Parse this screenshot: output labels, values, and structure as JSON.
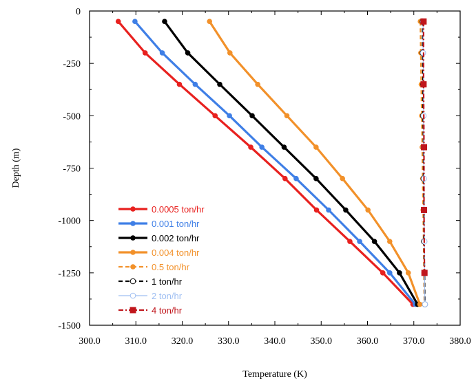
{
  "chart_data": {
    "type": "line",
    "xlabel": "Temperature (K)",
    "ylabel": "Depth (m)",
    "xlim": [
      300.0,
      380.0
    ],
    "ylim": [
      -1500,
      0
    ],
    "x_ticks": [
      "300.0",
      "310.0",
      "320.0",
      "330.0",
      "340.0",
      "350.0",
      "360.0",
      "370.0",
      "380.0"
    ],
    "y_ticks": [
      "0",
      "-250",
      "-500",
      "-750",
      "-1000",
      "-1250",
      "-1500"
    ],
    "x_tick_values": [
      300,
      310,
      320,
      330,
      340,
      350,
      360,
      370,
      380
    ],
    "y_tick_values": [
      0,
      -250,
      -500,
      -750,
      -1000,
      -1250,
      -1500
    ],
    "grid": false,
    "legend_position": "bottom-left",
    "series": [
      {
        "name": "0.0005 ton/hr",
        "color": "#e8211f",
        "dash": "solid",
        "marker": "filled-circle",
        "points": [
          [
            306.2,
            -50
          ],
          [
            312.0,
            -200
          ],
          [
            319.4,
            -350
          ],
          [
            327.1,
            -500
          ],
          [
            334.8,
            -650
          ],
          [
            342.2,
            -800
          ],
          [
            349.0,
            -950
          ],
          [
            356.2,
            -1100
          ],
          [
            363.3,
            -1250
          ],
          [
            369.8,
            -1400
          ]
        ]
      },
      {
        "name": "0.001 ton/hr",
        "color": "#3f7fe6",
        "dash": "solid",
        "marker": "filled-circle",
        "points": [
          [
            309.8,
            -50
          ],
          [
            315.7,
            -200
          ],
          [
            322.8,
            -350
          ],
          [
            330.2,
            -500
          ],
          [
            337.2,
            -650
          ],
          [
            344.6,
            -800
          ],
          [
            351.6,
            -950
          ],
          [
            358.3,
            -1100
          ],
          [
            364.8,
            -1250
          ],
          [
            370.3,
            -1400
          ]
        ]
      },
      {
        "name": "0.002 ton/hr",
        "color": "#000000",
        "dash": "solid",
        "marker": "filled-circle",
        "points": [
          [
            316.2,
            -50
          ],
          [
            321.2,
            -200
          ],
          [
            328.1,
            -350
          ],
          [
            335.1,
            -500
          ],
          [
            342.0,
            -650
          ],
          [
            348.9,
            -800
          ],
          [
            355.3,
            -950
          ],
          [
            361.5,
            -1100
          ],
          [
            366.9,
            -1250
          ],
          [
            370.8,
            -1400
          ]
        ]
      },
      {
        "name": "0.004 ton/hr",
        "color": "#f2912a",
        "dash": "solid",
        "marker": "filled-circle",
        "points": [
          [
            325.9,
            -50
          ],
          [
            330.3,
            -200
          ],
          [
            336.3,
            -350
          ],
          [
            342.6,
            -500
          ],
          [
            348.9,
            -650
          ],
          [
            354.6,
            -800
          ],
          [
            360.1,
            -950
          ],
          [
            364.8,
            -1100
          ],
          [
            368.8,
            -1250
          ],
          [
            371.3,
            -1400
          ]
        ]
      },
      {
        "name": "0.5 ton/hr",
        "color": "#f2912a",
        "dash": "dashed",
        "marker": "filled-circle",
        "points": [
          [
            371.4,
            -50
          ],
          [
            371.5,
            -200
          ],
          [
            371.6,
            -350
          ],
          [
            371.7,
            -500
          ],
          [
            371.8,
            -650
          ],
          [
            371.9,
            -800
          ],
          [
            372.0,
            -950
          ],
          [
            372.1,
            -1100
          ],
          [
            372.2,
            -1250
          ],
          [
            372.3,
            -1400
          ]
        ]
      },
      {
        "name": "1 ton/hr",
        "color": "#000000",
        "dash": "dashed",
        "marker": "open-circle",
        "points": [
          [
            371.9,
            -50
          ],
          [
            371.9,
            -200
          ],
          [
            372.0,
            -350
          ],
          [
            372.0,
            -500
          ],
          [
            372.1,
            -650
          ],
          [
            372.1,
            -800
          ],
          [
            372.2,
            -950
          ],
          [
            372.2,
            -1100
          ],
          [
            372.3,
            -1250
          ],
          [
            372.4,
            -1400
          ]
        ]
      },
      {
        "name": "2 ton/hr",
        "color": "#9fbff2",
        "dash": "solid",
        "marker": "open-circle",
        "points": [
          [
            372.0,
            -50
          ],
          [
            372.0,
            -200
          ],
          [
            372.1,
            -350
          ],
          [
            372.1,
            -500
          ],
          [
            372.1,
            -650
          ],
          [
            372.2,
            -800
          ],
          [
            372.2,
            -950
          ],
          [
            372.3,
            -1100
          ],
          [
            372.3,
            -1250
          ],
          [
            372.4,
            -1400
          ]
        ]
      },
      {
        "name": "4 ton/hr",
        "color": "#c0161c",
        "dash": "dashdot",
        "marker": "filled-square",
        "points": [
          [
            372.1,
            -50
          ],
          [
            372.1,
            -350
          ],
          [
            372.2,
            -650
          ],
          [
            372.2,
            -950
          ],
          [
            372.3,
            -1250
          ]
        ]
      }
    ]
  }
}
